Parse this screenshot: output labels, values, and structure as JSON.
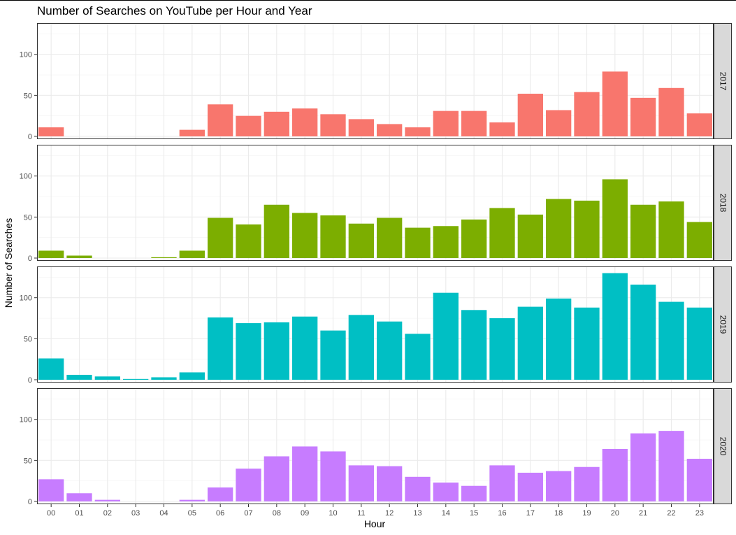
{
  "chart_data": {
    "type": "bar",
    "title": "Number of Searches on YouTube per Hour and Year",
    "xlabel": "Hour",
    "ylabel": "Number of Searches",
    "ylim": [
      0,
      133
    ],
    "yticks": [
      0,
      50,
      100
    ],
    "categories": [
      "00",
      "01",
      "02",
      "03",
      "04",
      "05",
      "06",
      "07",
      "08",
      "09",
      "10",
      "11",
      "12",
      "13",
      "14",
      "15",
      "16",
      "17",
      "18",
      "19",
      "20",
      "21",
      "22",
      "23"
    ],
    "facet": "rows by year, strip labels on right",
    "grid": true,
    "legend": "none",
    "series": [
      {
        "name": "2017",
        "color": "#F8766D",
        "values": [
          11,
          0,
          0,
          0,
          0,
          8,
          39,
          25,
          30,
          34,
          27,
          21,
          15,
          11,
          31,
          31,
          17,
          52,
          32,
          54,
          79,
          47,
          59,
          28
        ]
      },
      {
        "name": "2018",
        "color": "#7CAE00",
        "values": [
          9,
          3,
          0,
          0,
          1,
          9,
          49,
          41,
          65,
          55,
          52,
          42,
          49,
          37,
          39,
          47,
          61,
          53,
          72,
          70,
          96,
          65,
          69,
          44
        ]
      },
      {
        "name": "2019",
        "color": "#00BFC4",
        "values": [
          26,
          6,
          4,
          1,
          3,
          9,
          76,
          69,
          70,
          77,
          60,
          79,
          71,
          56,
          106,
          85,
          75,
          89,
          99,
          88,
          130,
          116,
          95,
          88
        ]
      },
      {
        "name": "2020",
        "color": "#C77CFF",
        "values": [
          27,
          10,
          2,
          0,
          0,
          2,
          17,
          40,
          55,
          67,
          61,
          44,
          43,
          30,
          23,
          19,
          44,
          35,
          37,
          42,
          64,
          83,
          86,
          52
        ]
      }
    ]
  }
}
